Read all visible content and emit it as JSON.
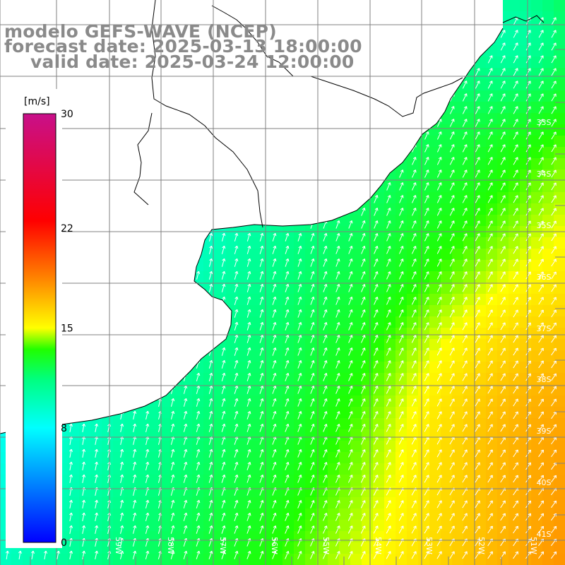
{
  "title": {
    "line1": "modelo GEFS-WAVE (NCEP)",
    "line2": "forecast date: 2025-03-13 18:00:00",
    "line3": "valid date: 2025-03-24 12:00:00"
  },
  "colorbar": {
    "unit": "[m/s]",
    "ticks": [
      {
        "label": "30",
        "value": 30
      },
      {
        "label": "22",
        "value": 22
      },
      {
        "label": "15",
        "value": 15
      },
      {
        "label": "8",
        "value": 8
      },
      {
        "label": "0",
        "value": 0
      }
    ]
  },
  "map": {
    "latitude_labels": [
      "33S",
      "34S",
      "35S",
      "36S",
      "37S",
      "38S",
      "39S",
      "40S",
      "41S"
    ],
    "longitude_labels": [
      "59W",
      "58W",
      "57W",
      "56W",
      "55W",
      "54W",
      "53W",
      "52W",
      "51W"
    ],
    "colors": {
      "land": "#ffffff",
      "coastline": "#000000",
      "grid": "#808080",
      "arrows": "#ffffff",
      "title_text": "#8a8a8a"
    },
    "vector_field": "wind-arrows"
  }
}
